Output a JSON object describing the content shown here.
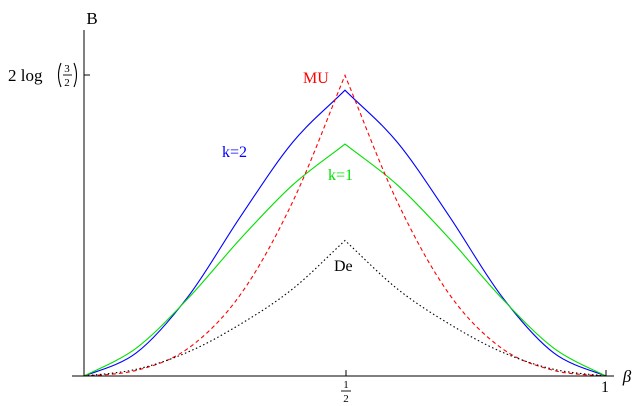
{
  "chart_data": {
    "type": "line",
    "title": "",
    "xlabel": "β",
    "ylabel": "B",
    "xlim": [
      0,
      1
    ],
    "ylim": [
      0,
      0.81093
    ],
    "grid": false,
    "x_ticks": [
      {
        "value": 0.5,
        "num": "1",
        "den": "2"
      },
      {
        "value": 1,
        "label": "1"
      }
    ],
    "y_ticks": [
      {
        "value": 0.81093,
        "prefix": "2 log",
        "num": "3",
        "den": "2"
      }
    ],
    "series": [
      {
        "name": "k=2",
        "color": "#0000ff",
        "dash": "solid",
        "x": [
          0,
          0.1,
          0.2,
          0.3,
          0.4,
          0.5,
          0.6,
          0.7,
          0.8,
          0.9,
          1
        ],
        "y": [
          0,
          0.062,
          0.215,
          0.43,
          0.63,
          0.77,
          0.63,
          0.43,
          0.215,
          0.062,
          0
        ]
      },
      {
        "name": "k=1",
        "color": "#00e000",
        "dash": "solid",
        "x": [
          0,
          0.1,
          0.2,
          0.3,
          0.4,
          0.5,
          0.6,
          0.7,
          0.8,
          0.9,
          1
        ],
        "y": [
          0,
          0.075,
          0.21,
          0.37,
          0.515,
          0.625,
          0.515,
          0.37,
          0.21,
          0.075,
          0
        ]
      },
      {
        "name": "MU",
        "color": "#ff0000",
        "dash": "dashed",
        "x": [
          0,
          0.1,
          0.2,
          0.3,
          0.4,
          0.5,
          0.6,
          0.7,
          0.8,
          0.9,
          1
        ],
        "y": [
          0,
          0.015,
          0.075,
          0.22,
          0.47,
          0.81,
          0.47,
          0.22,
          0.075,
          0.015,
          0
        ]
      },
      {
        "name": "De",
        "color": "#000000",
        "dash": "dotted",
        "x": [
          0,
          0.1,
          0.2,
          0.3,
          0.4,
          0.5,
          0.6,
          0.7,
          0.8,
          0.9,
          1
        ],
        "y": [
          0,
          0.018,
          0.065,
          0.14,
          0.235,
          0.365,
          0.235,
          0.14,
          0.065,
          0.018,
          0
        ]
      }
    ]
  }
}
